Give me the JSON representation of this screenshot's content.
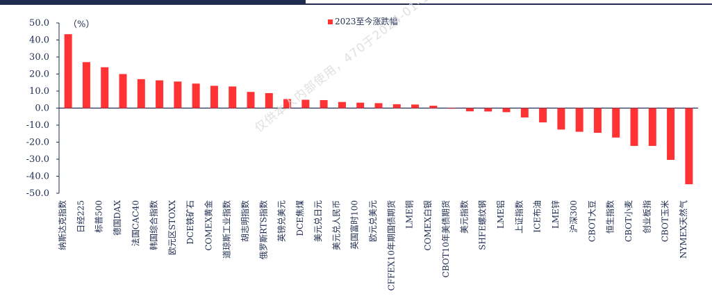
{
  "chart_data": {
    "type": "bar",
    "unit_label": "（%）",
    "legend": "2023至今涨跌幅",
    "legend_position": "top",
    "ylim": [
      -50,
      50
    ],
    "yticks": [
      "50.0",
      "40.0",
      "30.0",
      "20.0",
      "10.0",
      "0.0",
      "-10.0",
      "-20.0",
      "-30.0",
      "-40.0",
      "-50.0"
    ],
    "bar_color": "#ff3333",
    "categories": [
      "纳斯达克指数",
      "日经225",
      "标普500",
      "德国DAX",
      "法国CAC40",
      "韩国综合指数",
      "欧元区STOXX",
      "DCE铁矿石",
      "COMEX黄金",
      "道琼斯工业指数",
      "胡志明指数",
      "俄罗斯RTS指数",
      "英镑兑美元",
      "DCE焦煤",
      "美元兑日元",
      "美元兑人民币",
      "英国富时100",
      "欧元兑美元",
      "CFFEX10年期国债期货",
      "LME铜",
      "COMEX白银",
      "CBOT10年美债期货",
      "美元指数",
      "SHFE螺纹钢",
      "LME铝",
      "上证指数",
      "ICE布油",
      "LME锌",
      "沪深300",
      "CBOT大豆",
      "恒生指数",
      "CBOT小麦",
      "创业板指",
      "CBOT玉米",
      "NYMEX天然气"
    ],
    "values": [
      43.4,
      27.0,
      24.0,
      20.0,
      17.0,
      16.3,
      15.6,
      14.4,
      13.1,
      12.7,
      9.5,
      8.8,
      5.3,
      4.9,
      4.7,
      3.6,
      3.2,
      2.9,
      2.3,
      2.1,
      1.4,
      -0.3,
      -1.9,
      -2.0,
      -2.4,
      -5.5,
      -8.4,
      -12.6,
      -13.9,
      -14.5,
      -17.3,
      -22.2,
      -22.2,
      -30.4,
      -44.7
    ]
  },
  "watermark_text": "仅供本人内部使用，470于2024-01-18日下载"
}
